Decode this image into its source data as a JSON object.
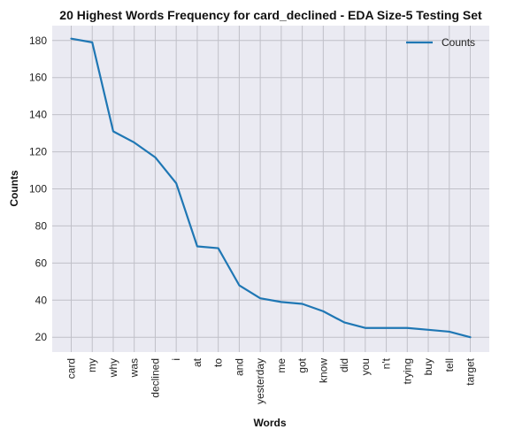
{
  "chart_data": {
    "type": "line",
    "title": "20 Highest Words Frequency for card_declined - EDA Size-5 Testing Set",
    "xlabel": "Words",
    "ylabel": "Counts",
    "categories": [
      "card",
      "my",
      "why",
      "was",
      "declined",
      "i",
      "at",
      "to",
      "and",
      "yesterday",
      "me",
      "got",
      "know",
      "did",
      "you",
      "n't",
      "trying",
      "buy",
      "tell",
      "target"
    ],
    "series": [
      {
        "name": "Counts",
        "values": [
          181,
          179,
          131,
          125,
          117,
          103,
          69,
          68,
          48,
          41,
          39,
          38,
          34,
          28,
          25,
          25,
          25,
          24,
          23,
          20
        ],
        "color": "#1f77b4"
      }
    ],
    "ylim": [
      12,
      188
    ],
    "yticks": [
      20,
      40,
      60,
      80,
      100,
      120,
      140,
      160,
      180
    ],
    "grid": true,
    "legend_position": "top-right",
    "background_color": "#eaeaf2",
    "grid_color": "#c0c0c8"
  }
}
